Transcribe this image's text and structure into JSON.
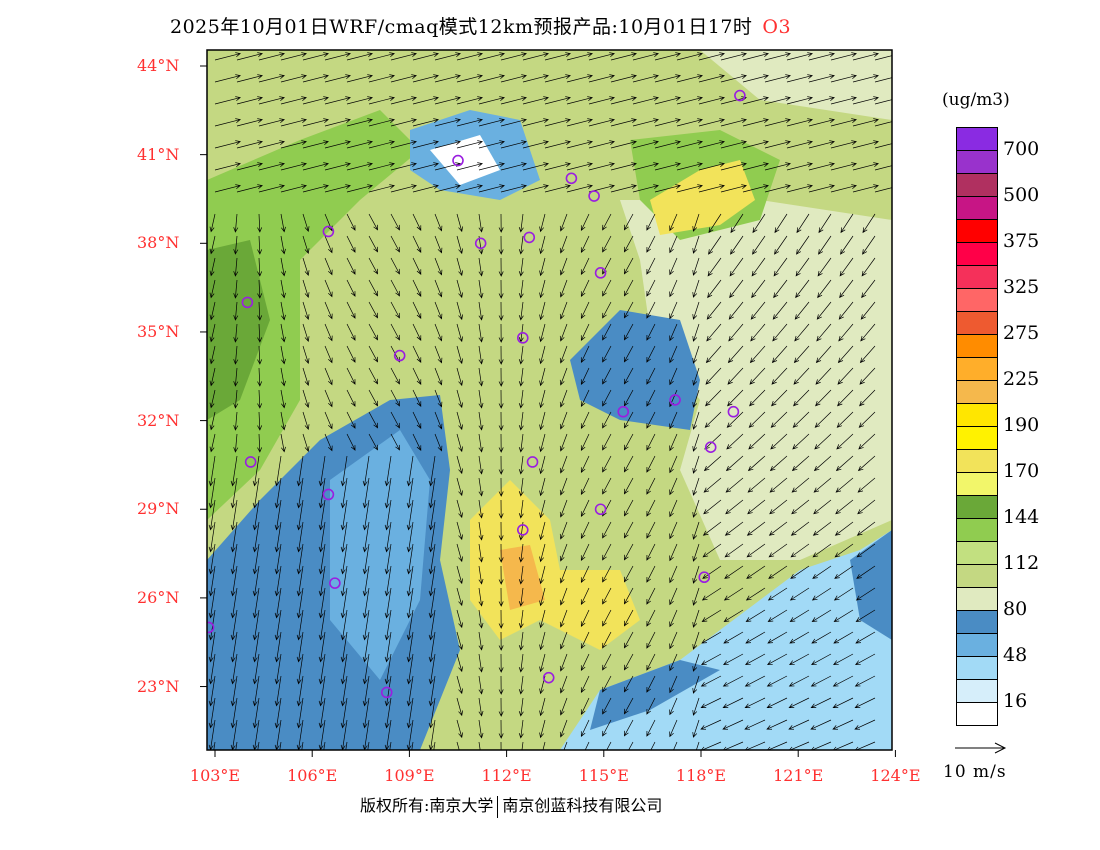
{
  "header": {
    "title": "2025年10月01日WRF/cmaq模式12km预报产品:10月01日17时",
    "species": "O3"
  },
  "axes": {
    "lat_labels": [
      "44°N",
      "41°N",
      "38°N",
      "35°N",
      "32°N",
      "29°N",
      "26°N",
      "23°N"
    ],
    "lat_values": [
      44,
      41,
      38,
      35,
      32,
      29,
      26,
      23
    ],
    "lon_labels": [
      "103°E",
      "106°E",
      "109°E",
      "112°E",
      "115°E",
      "118°E",
      "121°E",
      "124°E"
    ],
    "lon_values": [
      103,
      106,
      109,
      112,
      115,
      118,
      121,
      124
    ]
  },
  "legend": {
    "unit": "(ug/m3)",
    "labels": [
      "700",
      "500",
      "375",
      "325",
      "275",
      "225",
      "190",
      "170",
      "144",
      "112",
      "80",
      "48",
      "16"
    ],
    "colors": [
      "#8a2be2",
      "#9932cc",
      "#b03060",
      "#c71585",
      "#ff0000",
      "#ff0048",
      "#f5305a",
      "#ff6666",
      "#ee5a30",
      "#ff8c00",
      "#ffae2a",
      "#f5b84c",
      "#ffe600",
      "#fff200",
      "#f2e35a",
      "#f2f66a",
      "#6aa838",
      "#90cc50",
      "#c2e080",
      "#c4d882",
      "#e0eac0",
      "#4a8cc4",
      "#6ab0e0",
      "#a2daf6",
      "#d6eefa",
      "#ffffff"
    ],
    "wind_scale": "10 m/s"
  },
  "sites": [
    [
      119.2,
      43.0
    ],
    [
      110.5,
      40.8
    ],
    [
      114.0,
      40.2
    ],
    [
      114.7,
      39.6
    ],
    [
      106.5,
      38.4
    ],
    [
      111.2,
      38.0
    ],
    [
      112.7,
      38.2
    ],
    [
      114.9,
      37.0
    ],
    [
      104.0,
      36.0
    ],
    [
      112.5,
      34.8
    ],
    [
      108.7,
      34.2
    ],
    [
      115.6,
      32.3
    ],
    [
      117.2,
      32.7
    ],
    [
      119.0,
      32.3
    ],
    [
      104.1,
      30.6
    ],
    [
      112.8,
      30.6
    ],
    [
      118.3,
      31.1
    ],
    [
      106.5,
      29.5
    ],
    [
      114.9,
      29.0
    ],
    [
      112.5,
      28.3
    ],
    [
      106.7,
      26.5
    ],
    [
      118.1,
      26.7
    ],
    [
      102.8,
      25.0
    ],
    [
      108.3,
      22.8
    ],
    [
      113.3,
      23.3
    ]
  ],
  "footer": {
    "copyright": "版权所有:南京大学",
    "company": "南京创蓝科技有限公司"
  }
}
